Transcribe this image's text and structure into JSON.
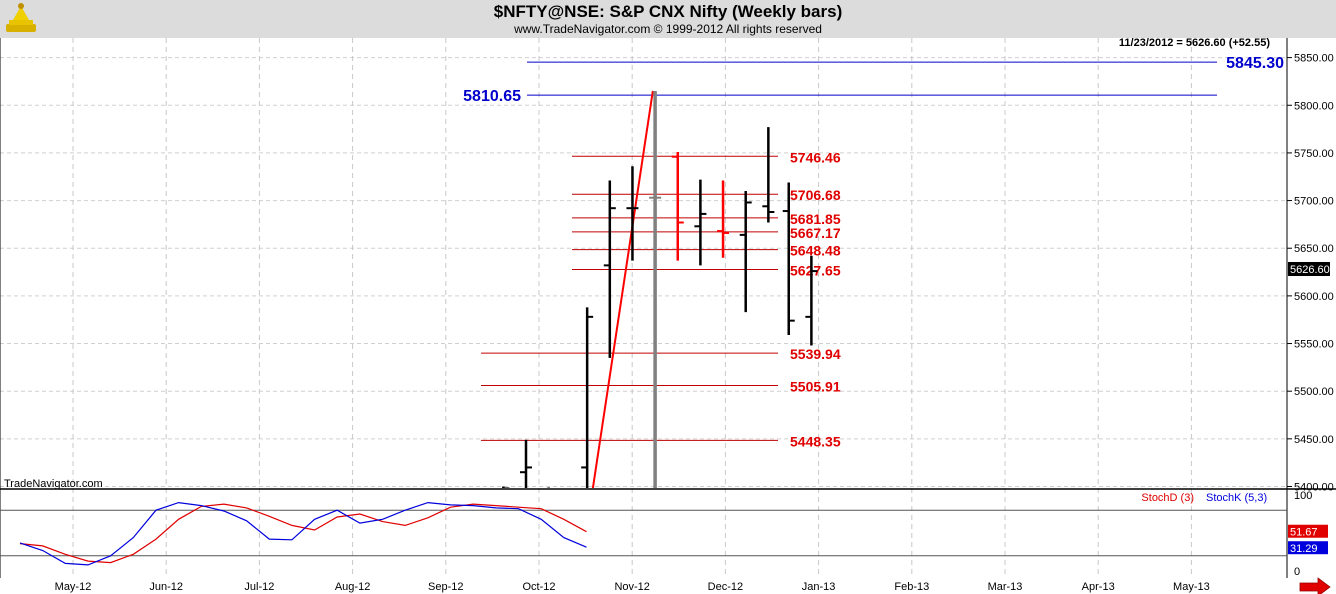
{
  "header": {
    "title": "$NFTY@NSE:  S&P CNX Nifty  (Weekly bars)",
    "copyright": "www.TradeNavigator.com © 1999-2012 All rights reserved",
    "watermark": "TradeNavigator.com",
    "last_bar_info": "11/23/2012 = 5626.60 (+52.55)"
  },
  "colors": {
    "bar": "#000000",
    "bar_gray": "#808080",
    "highlight": "#ff0000",
    "fib_line": "#c00000",
    "level_blue": "#0000cc",
    "stoch_d": "#e00000",
    "stoch_k": "#0000dd",
    "price_tag_bg": "#000000",
    "header_bg": "#dcdcdc"
  },
  "chart_data": [
    {
      "type": "ohlc",
      "name": "price",
      "ylim": [
        5390,
        5870
      ],
      "y_ticks": [
        5400,
        5450,
        5500,
        5550,
        5600,
        5650,
        5700,
        5750,
        5800,
        5850
      ],
      "y_tick_labels": [
        "5400.00",
        "5450.00",
        "5500.00",
        "5550.00",
        "5600.00",
        "5650.00",
        "5700.00",
        "5750.00",
        "5800.00",
        "5850.00"
      ],
      "x_labels": [
        "May-12",
        "Jun-12",
        "Jul-12",
        "Aug-12",
        "Sep-12",
        "Oct-12",
        "Nov-12",
        "Dec-12",
        "Jan-13",
        "Feb-13",
        "Mar-13",
        "Apr-13",
        "May-13"
      ],
      "current_price_label": "5626.60",
      "current_price": 5626.6,
      "bars": [
        {
          "w": 19.0,
          "o": 5396,
          "h": 5400,
          "l": 5390,
          "c": 5398,
          "color": "black"
        },
        {
          "w": 20.0,
          "o": 5415,
          "h": 5449,
          "l": 5390,
          "c": 5420,
          "color": "black"
        },
        {
          "w": 21.0,
          "o": 5395,
          "h": 5399,
          "l": 5390,
          "c": 5397,
          "color": "black"
        },
        {
          "w": 22.7,
          "o": 5420,
          "h": 5588,
          "l": 5390,
          "c": 5578,
          "color": "black"
        },
        {
          "w": 23.7,
          "o": 5632,
          "h": 5721,
          "l": 5535,
          "c": 5692,
          "color": "black"
        },
        {
          "w": 24.7,
          "o": 5692,
          "h": 5736,
          "l": 5637,
          "c": 5692,
          "color": "black"
        },
        {
          "w": 25.7,
          "o": 5703,
          "h": 5815,
          "l": 5390,
          "c": 5703,
          "color": "gray"
        },
        {
          "w": 26.7,
          "o": 5746,
          "h": 5751,
          "l": 5637,
          "c": 5677,
          "color": "red"
        },
        {
          "w": 27.7,
          "o": 5673,
          "h": 5722,
          "l": 5632,
          "c": 5686,
          "color": "black"
        },
        {
          "w": 28.7,
          "o": 5668,
          "h": 5721,
          "l": 5640,
          "c": 5666,
          "color": "red"
        },
        {
          "w": 29.7,
          "o": 5664,
          "h": 5710,
          "l": 5583,
          "c": 5698,
          "color": "black"
        },
        {
          "w": 30.7,
          "o": 5694,
          "h": 5777,
          "l": 5677,
          "c": 5688,
          "color": "black"
        },
        {
          "w": 31.6,
          "o": 5689,
          "h": 5719,
          "l": 5559,
          "c": 5574,
          "color": "black"
        },
        {
          "w": 32.6,
          "o": 5578,
          "h": 5642,
          "l": 5548,
          "c": 5626,
          "color": "black"
        }
      ],
      "trendline": {
        "from": {
          "w": 22.9,
          "v": 5390
        },
        "to": {
          "w": 25.6,
          "v": 5815
        }
      },
      "levels": [
        {
          "value": 5845.3,
          "label": "5845.30",
          "style": "blue-right"
        },
        {
          "value": 5810.65,
          "label": "5810.65",
          "style": "blue-left"
        },
        {
          "value": 5746.46,
          "label": "5746.46",
          "style": "fib"
        },
        {
          "value": 5706.68,
          "label": "5706.68",
          "style": "fib"
        },
        {
          "value": 5681.85,
          "label": "5681.85",
          "style": "fib"
        },
        {
          "value": 5667.17,
          "label": "5667.17",
          "style": "fib"
        },
        {
          "value": 5648.48,
          "label": "5648.48",
          "style": "fib"
        },
        {
          "value": 5627.65,
          "label": "5627.65",
          "style": "fib"
        },
        {
          "value": 5539.94,
          "label": "5539.94",
          "style": "fib-wide"
        },
        {
          "value": 5505.91,
          "label": "5505.91",
          "style": "fib-wide"
        },
        {
          "value": 5448.35,
          "label": "5448.35",
          "style": "fib-wide"
        }
      ]
    },
    {
      "type": "line",
      "name": "stochastic",
      "ylim": [
        0,
        100
      ],
      "y_tick_labels": {
        "top": "100",
        "bottom": "0"
      },
      "ref_levels": [
        80,
        20
      ],
      "legend": [
        "StochD (3)",
        "StochK (5,3)"
      ],
      "last_labels": {
        "d": "51.67",
        "k": "31.29"
      },
      "series": [
        {
          "key": "d",
          "label": "StochD (3)",
          "points": [
            [
              0,
              36
            ],
            [
              1,
              33
            ],
            [
              2,
              22
            ],
            [
              3,
              13
            ],
            [
              4,
              11
            ],
            [
              5,
              22
            ],
            [
              6,
              42
            ],
            [
              7,
              68
            ],
            [
              8,
              85
            ],
            [
              9,
              88
            ],
            [
              10,
              83
            ],
            [
              11,
              72
            ],
            [
              12,
              60
            ],
            [
              13,
              54
            ],
            [
              14,
              71
            ],
            [
              15,
              75
            ],
            [
              16,
              65
            ],
            [
              17,
              60
            ],
            [
              18,
              70
            ],
            [
              19,
              84
            ],
            [
              20,
              88
            ],
            [
              21,
              86
            ],
            [
              22,
              84
            ],
            [
              23,
              82
            ],
            [
              24,
              68
            ],
            [
              25,
              51.67
            ]
          ]
        },
        {
          "key": "k",
          "label": "StochK (5,3)",
          "points": [
            [
              0,
              37
            ],
            [
              1,
              27
            ],
            [
              2,
              10
            ],
            [
              3,
              8
            ],
            [
              4,
              20
            ],
            [
              5,
              44
            ],
            [
              6,
              80
            ],
            [
              7,
              90
            ],
            [
              8,
              86
            ],
            [
              9,
              79
            ],
            [
              10,
              66
            ],
            [
              11,
              42
            ],
            [
              12,
              41
            ],
            [
              13,
              68
            ],
            [
              14,
              80
            ],
            [
              15,
              63
            ],
            [
              16,
              68
            ],
            [
              17,
              80
            ],
            [
              18,
              90
            ],
            [
              19,
              87
            ],
            [
              20,
              86
            ],
            [
              21,
              83
            ],
            [
              22,
              82
            ],
            [
              23,
              68
            ],
            [
              24,
              44
            ],
            [
              25,
              31.29
            ]
          ]
        }
      ]
    }
  ]
}
